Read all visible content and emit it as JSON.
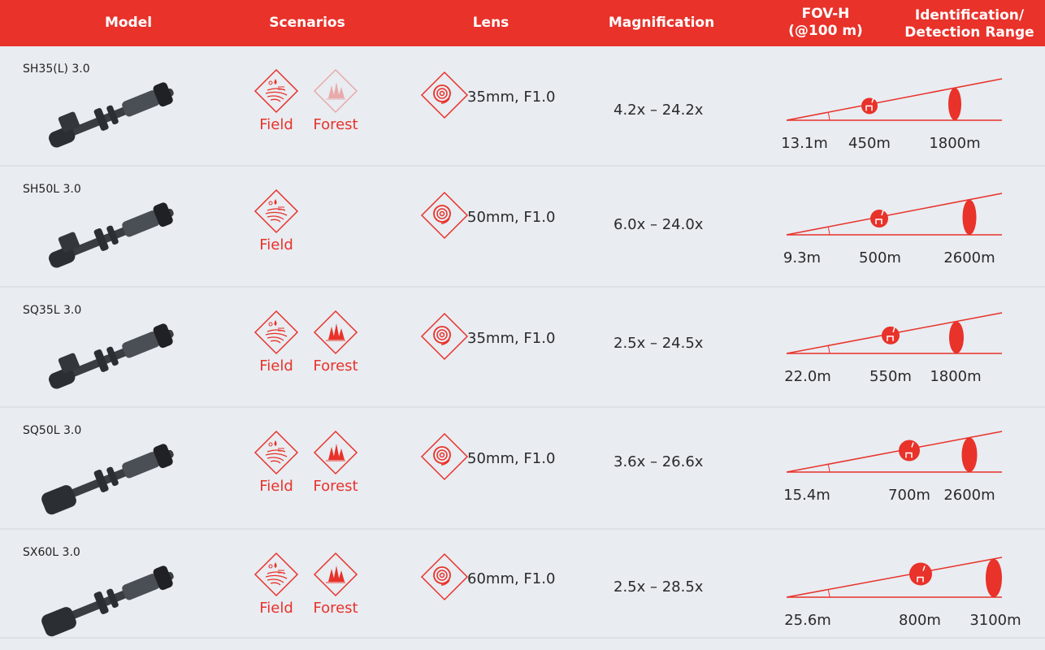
{
  "colors": {
    "accent": "#e8322a",
    "background": "#e9ecf1"
  },
  "header": {
    "model": "Model",
    "scenarios": "Scenarios",
    "lens": "Lens",
    "magnification": "Magnification",
    "fov_line1": "FOV-H",
    "fov_line2": "(@100 m)",
    "range_line1": "Identification/",
    "range_line2": "Detection Range"
  },
  "rows": [
    {
      "model": "SH35(L) 3.0",
      "scenarios": [
        {
          "label": "Field",
          "icon": "field-icon",
          "faded": false
        },
        {
          "label": "Forest",
          "icon": "forest-icon",
          "faded": true
        }
      ],
      "lens": "35mm, F1.0",
      "magnification": "4.2x – 24.2x",
      "fov": "13.1m",
      "identification": "450m",
      "detection": "1800m"
    },
    {
      "model": "SH50L 3.0",
      "scenarios": [
        {
          "label": "Field",
          "icon": "field-icon",
          "faded": false
        }
      ],
      "lens": "50mm, F1.0",
      "magnification": "6.0x – 24.0x",
      "fov": "9.3m",
      "identification": "500m",
      "detection": "2600m"
    },
    {
      "model": "SQ35L 3.0",
      "scenarios": [
        {
          "label": "Field",
          "icon": "field-icon",
          "faded": false
        },
        {
          "label": "Forest",
          "icon": "forest-icon",
          "faded": false
        }
      ],
      "lens": "35mm, F1.0",
      "magnification": "2.5x – 24.5x",
      "fov": "22.0m",
      "identification": "550m",
      "detection": "1800m"
    },
    {
      "model": "SQ50L 3.0",
      "scenarios": [
        {
          "label": "Field",
          "icon": "field-icon",
          "faded": false
        },
        {
          "label": "Forest",
          "icon": "forest-icon",
          "faded": false
        }
      ],
      "lens": "50mm, F1.0",
      "magnification": "3.6x – 26.6x",
      "fov": "15.4m",
      "identification": "700m",
      "detection": "2600m"
    },
    {
      "model": "SX60L 3.0",
      "scenarios": [
        {
          "label": "Field",
          "icon": "field-icon",
          "faded": false
        },
        {
          "label": "Forest",
          "icon": "forest-icon",
          "faded": false
        }
      ],
      "lens": "60mm, F1.0",
      "magnification": "2.5x – 28.5x",
      "fov": "25.6m",
      "identification": "800m",
      "detection": "3100m"
    }
  ]
}
